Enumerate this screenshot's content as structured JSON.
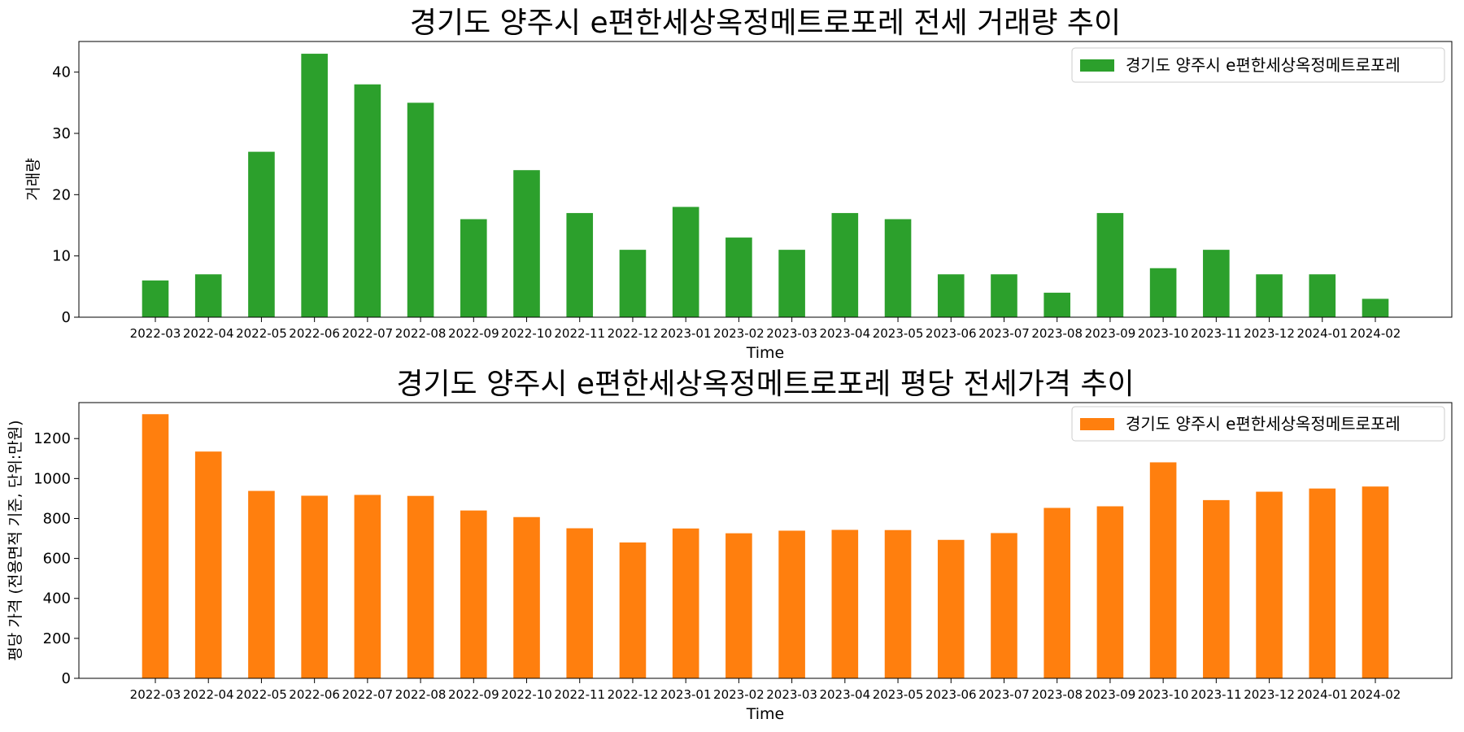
{
  "chart_data": [
    {
      "type": "bar",
      "title": "경기도 양주시 e편한세상옥정메트로포레 전세 거래량 추이",
      "xlabel": "Time",
      "ylabel": "거래량",
      "legend_position": "top-right",
      "grid": false,
      "ylim": [
        0,
        45
      ],
      "yticks": [
        0,
        10,
        20,
        30,
        40
      ],
      "color": "#2ca02c",
      "categories": [
        "2022-03",
        "2022-04",
        "2022-05",
        "2022-06",
        "2022-07",
        "2022-08",
        "2022-09",
        "2022-10",
        "2022-11",
        "2022-12",
        "2023-01",
        "2023-02",
        "2023-03",
        "2023-04",
        "2023-05",
        "2023-06",
        "2023-07",
        "2023-08",
        "2023-09",
        "2023-10",
        "2023-11",
        "2023-12",
        "2024-01",
        "2024-02"
      ],
      "series": [
        {
          "name": "경기도 양주시 e편한세상옥정메트로포레",
          "values": [
            6,
            7,
            27,
            43,
            38,
            35,
            16,
            24,
            17,
            11,
            18,
            13,
            11,
            17,
            16,
            7,
            7,
            4,
            17,
            8,
            11,
            7,
            7,
            3
          ]
        }
      ]
    },
    {
      "type": "bar",
      "title": "경기도 양주시 e편한세상옥정메트로포레 평당 전세가격 추이",
      "xlabel": "Time",
      "ylabel": "평당 가격 (전용면적 기준, 단위:만원)",
      "legend_position": "top-right",
      "grid": false,
      "ylim": [
        0,
        1380
      ],
      "yticks": [
        0,
        200,
        400,
        600,
        800,
        1000,
        1200
      ],
      "color": "#ff7f0e",
      "categories": [
        "2022-03",
        "2022-04",
        "2022-05",
        "2022-06",
        "2022-07",
        "2022-08",
        "2022-09",
        "2022-10",
        "2022-11",
        "2022-12",
        "2023-01",
        "2023-02",
        "2023-03",
        "2023-04",
        "2023-05",
        "2023-06",
        "2023-07",
        "2023-08",
        "2023-09",
        "2023-10",
        "2023-11",
        "2023-12",
        "2024-01",
        "2024-02"
      ],
      "series": [
        {
          "name": "경기도 양주시 e편한세상옥정메트로포레",
          "values": [
            1322,
            1135,
            938,
            914,
            918,
            913,
            840,
            807,
            751,
            680,
            750,
            726,
            739,
            743,
            742,
            693,
            727,
            853,
            861,
            1081,
            892,
            934,
            950,
            960
          ]
        }
      ]
    }
  ]
}
